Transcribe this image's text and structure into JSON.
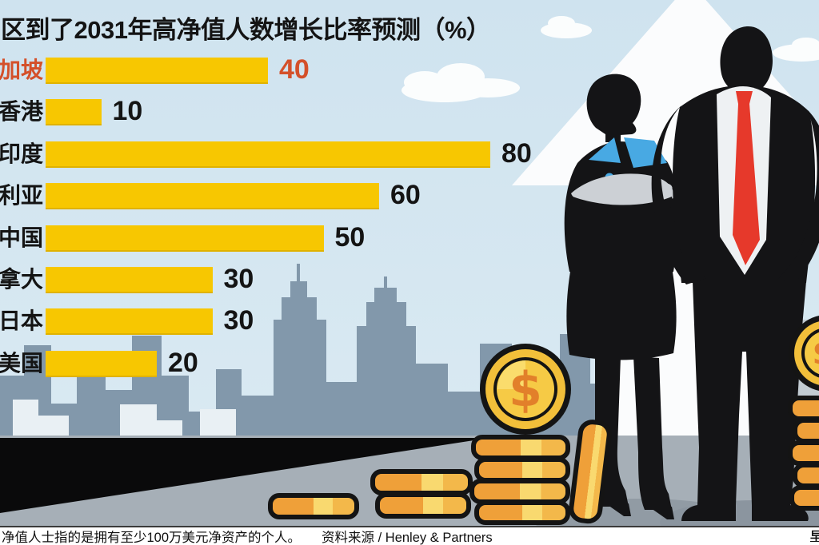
{
  "title": "区到了2031年高净值人数增长比率预测（%）",
  "chart_data": {
    "type": "bar",
    "orientation": "horizontal",
    "title": "区到了2031年高净值人数增长比率预测（%）",
    "unit": "%",
    "categories": [
      "加坡",
      "香港",
      "印度",
      "利亚",
      "中国",
      "拿大",
      "日本",
      "美国"
    ],
    "values": [
      40,
      10,
      80,
      60,
      50,
      30,
      30,
      20
    ],
    "xlim": [
      0,
      85
    ],
    "highlight_index": 0,
    "legend": "none",
    "grid": "off"
  },
  "footer": {
    "note": "净值人士指的是拥有至少100万美元净资产的个人。",
    "source": "资料来源 / Henley & Partners",
    "corner_mark": "早"
  },
  "icons": {
    "dollar_sign": "$"
  },
  "colors": {
    "bar": "#f7c701",
    "highlight_text": "#d4502a",
    "value_text": "#141414",
    "sky_top": "#cfe3ef",
    "sky_bottom": "#dcebf3",
    "skyline": "#8298ab",
    "floor": "#a6afb7",
    "black_wedge": "#0a0a0b",
    "arrow_white": "#fbfcfd",
    "tie_red": "#e6392b",
    "collar_blue": "#48a9e3",
    "coin_gold": "#f2bf3a",
    "coin_symbol_orange": "#e2802a"
  }
}
